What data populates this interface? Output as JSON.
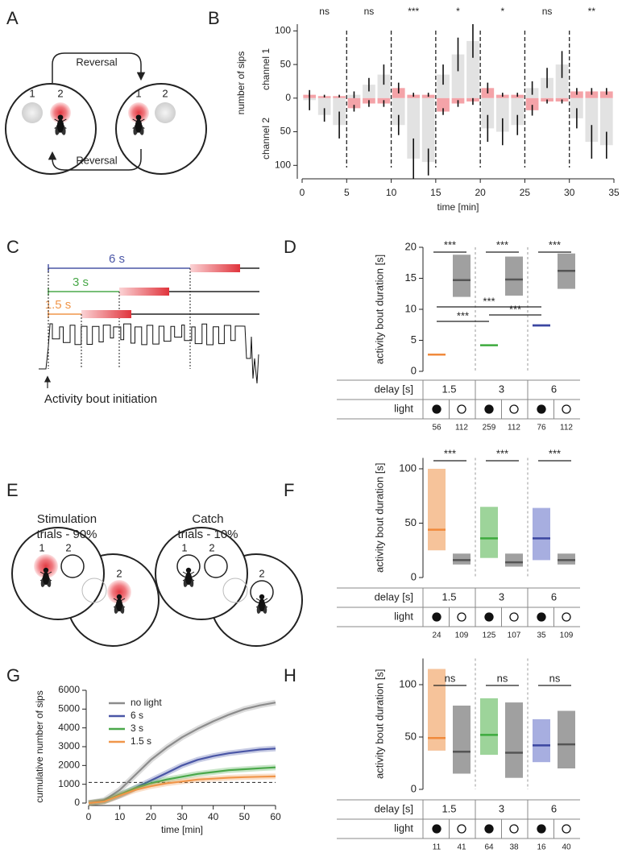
{
  "panel_labels": [
    "A",
    "B",
    "C",
    "D",
    "E",
    "F",
    "G",
    "H"
  ],
  "diagram_a": {
    "arrow_labels": [
      "Reversal",
      "Reversal"
    ],
    "food_labels": [
      "1",
      "2",
      "1",
      "2"
    ]
  },
  "diagram_c": {
    "delay_labels": [
      {
        "text": "6 s",
        "color": "#4a56a6"
      },
      {
        "text": "3 s",
        "color": "#4aa84a"
      },
      {
        "text": "1.5 s",
        "color": "#f0964a"
      }
    ],
    "annotation": "Activity bout initiation"
  },
  "diagram_e": {
    "trial_labels": [
      [
        "Stimulation",
        "trials - 90%"
      ],
      [
        "Catch",
        "trials - 10%"
      ]
    ],
    "food_labels": [
      "1",
      "2",
      "2",
      "1",
      "2",
      "2"
    ]
  },
  "chart_data": [
    {
      "type": "mirrored_bar",
      "ylabel": "number of sips",
      "xlabel": "time [min]",
      "x": [
        0.83,
        2.5,
        4.17,
        5.83,
        7.5,
        9.17,
        10.83,
        12.5,
        14.17,
        15.83,
        17.5,
        19.17,
        20.83,
        22.5,
        24.17,
        25.83,
        27.5,
        29.17,
        30.83,
        32.5,
        34.17
      ],
      "series": [
        {
          "name": "channel 1",
          "values": [
            5,
            3,
            3,
            5,
            20,
            35,
            15,
            5,
            5,
            35,
            65,
            85,
            15,
            5,
            5,
            15,
            30,
            50,
            10,
            10,
            10
          ],
          "errors": [
            3,
            2,
            2,
            5,
            10,
            15,
            8,
            3,
            3,
            15,
            25,
            25,
            8,
            3,
            3,
            10,
            15,
            20,
            5,
            5,
            5
          ],
          "colors": [
            "#f4a3a8",
            "#f4a3a8",
            "#f4a3a8",
            "#e2e2e2",
            "#e2e2e2",
            "#e2e2e2",
            "#f4a3a8",
            "#f4a3a8",
            "#f4a3a8",
            "#e2e2e2",
            "#e2e2e2",
            "#e2e2e2",
            "#f4a3a8",
            "#f4a3a8",
            "#f4a3a8",
            "#e2e2e2",
            "#e2e2e2",
            "#e2e2e2",
            "#f4a3a8",
            "#f4a3a8",
            "#f4a3a8"
          ]
        },
        {
          "name": "channel 2",
          "values": [
            -3,
            -25,
            -40,
            -15,
            -8,
            -8,
            -40,
            -90,
            -95,
            -20,
            -8,
            -5,
            -45,
            -50,
            -40,
            -18,
            -5,
            -5,
            -30,
            -65,
            -70
          ],
          "errors": [
            15,
            10,
            20,
            5,
            5,
            5,
            15,
            30,
            20,
            5,
            5,
            5,
            20,
            20,
            15,
            8,
            3,
            3,
            15,
            25,
            20
          ],
          "colors": [
            "#e2e2e2",
            "#e2e2e2",
            "#e2e2e2",
            "#f4a3a8",
            "#f4a3a8",
            "#f4a3a8",
            "#e2e2e2",
            "#e2e2e2",
            "#e2e2e2",
            "#f4a3a8",
            "#f4a3a8",
            "#f4a3a8",
            "#e2e2e2",
            "#e2e2e2",
            "#e2e2e2",
            "#f4a3a8",
            "#f4a3a8",
            "#f4a3a8",
            "#e2e2e2",
            "#e2e2e2",
            "#e2e2e2"
          ]
        }
      ],
      "xlim": [
        0,
        35
      ],
      "xticks": [
        0,
        5,
        10,
        15,
        20,
        25,
        30,
        35
      ],
      "ylim": [
        -120,
        110
      ],
      "yticks": [
        {
          "value": -100,
          "label": "100"
        },
        {
          "value": -50,
          "label": "50"
        },
        0,
        50,
        100
      ],
      "block_annotations": [
        "ns",
        "ns",
        "***",
        "*",
        "*",
        "ns",
        "**"
      ]
    },
    {
      "type": "box",
      "ylabel": "activity bout duration [s]",
      "ylim": [
        0,
        20
      ],
      "yticks": [
        0,
        5,
        10,
        15,
        20
      ],
      "table_labels": [
        "delay [s]",
        "light"
      ],
      "groups": [
        "1.5",
        "3",
        "6"
      ],
      "light": [
        true,
        false,
        true,
        false,
        true,
        false
      ],
      "medians": [
        2.7,
        14.7,
        4.2,
        14.8,
        7.4,
        16.2
      ],
      "q1": [
        2.6,
        12,
        4.1,
        12.2,
        7.2,
        13.3
      ],
      "q3": [
        2.8,
        18.8,
        4.3,
        18.5,
        7.6,
        19
      ],
      "box_colors": [
        "#f6b98a",
        "#a0a0a0",
        "#9dd49a",
        "#a0a0a0",
        "#a7aee0",
        "#a0a0a0"
      ],
      "median_colors": [
        "#f08a3c",
        "#555555",
        "#3daa3d",
        "#555555",
        "#3b46a0",
        "#555555"
      ],
      "n": [
        56,
        112,
        259,
        112,
        76,
        112
      ],
      "pair_labels": [
        "***",
        "***",
        "***"
      ],
      "cross_labels": [
        "***",
        "***",
        "***"
      ]
    },
    {
      "type": "box",
      "ylabel": "activity bout duration [s]",
      "ylim": [
        0,
        110
      ],
      "yticks": [
        0,
        50,
        100
      ],
      "table_labels": [
        "delay [s]",
        "light"
      ],
      "groups": [
        "1.5",
        "3",
        "6"
      ],
      "light": [
        true,
        false,
        true,
        false,
        true,
        false
      ],
      "medians": [
        44,
        16,
        36,
        14,
        36,
        16
      ],
      "q1": [
        25,
        12,
        18,
        10,
        16,
        12
      ],
      "q3": [
        100,
        22,
        65,
        22,
        64,
        22
      ],
      "box_colors": [
        "#f6c39a",
        "#a0a0a0",
        "#9dd49a",
        "#a0a0a0",
        "#a7aee0",
        "#a0a0a0"
      ],
      "median_colors": [
        "#f08a3c",
        "#555555",
        "#3daa3d",
        "#555555",
        "#3b46a0",
        "#555555"
      ],
      "n": [
        24,
        109,
        125,
        107,
        35,
        109
      ],
      "pair_labels": [
        "***",
        "***",
        "***"
      ]
    },
    {
      "type": "line",
      "ylabel": "cumulative number of sips",
      "xlabel": "time [min]",
      "x": [
        0,
        5,
        10,
        15,
        20,
        25,
        30,
        35,
        40,
        45,
        50,
        55,
        60
      ],
      "series": [
        {
          "name": "no light",
          "color": "#8c8c8c",
          "values": [
            0,
            150,
            700,
            1500,
            2300,
            2950,
            3500,
            3950,
            4350,
            4700,
            5000,
            5200,
            5350
          ]
        },
        {
          "name": "6 s",
          "color": "#4a56a6",
          "values": [
            0,
            100,
            400,
            800,
            1200,
            1600,
            2000,
            2300,
            2500,
            2650,
            2750,
            2850,
            2900
          ]
        },
        {
          "name": "3 s",
          "color": "#4aa84a",
          "values": [
            0,
            100,
            450,
            800,
            1050,
            1250,
            1400,
            1550,
            1650,
            1750,
            1800,
            1850,
            1900
          ]
        },
        {
          "name": "1.5 s",
          "color": "#f0964a",
          "values": [
            0,
            80,
            400,
            700,
            900,
            1050,
            1150,
            1250,
            1300,
            1350,
            1380,
            1400,
            1420
          ]
        }
      ],
      "xlim": [
        0,
        60
      ],
      "xticks": [
        0,
        10,
        20,
        30,
        40,
        50,
        60
      ],
      "ylim": [
        0,
        6000
      ],
      "yticks": [
        0,
        1000,
        2000,
        3000,
        4000,
        5000,
        6000
      ],
      "reference_line": 1100,
      "legend": "upper left"
    },
    {
      "type": "box",
      "ylabel": "activity bout duration [s]",
      "ylim": [
        0,
        125
      ],
      "yticks": [
        0,
        50,
        100
      ],
      "table_labels": [
        "delay [s]",
        "light"
      ],
      "groups": [
        "1.5",
        "3",
        "6"
      ],
      "light": [
        true,
        false,
        true,
        false,
        true,
        false
      ],
      "medians": [
        49,
        36,
        52,
        35,
        42,
        43
      ],
      "q1": [
        37,
        15,
        33,
        11,
        26,
        20
      ],
      "q3": [
        115,
        80,
        87,
        83,
        67,
        75
      ],
      "box_colors": [
        "#f6c39a",
        "#a0a0a0",
        "#9dd49a",
        "#a0a0a0",
        "#a7aee0",
        "#a0a0a0"
      ],
      "median_colors": [
        "#f08a3c",
        "#555555",
        "#3daa3d",
        "#555555",
        "#3b46a0",
        "#555555"
      ],
      "n": [
        11,
        41,
        64,
        38,
        16,
        40
      ],
      "pair_labels": [
        "ns",
        "ns",
        "ns"
      ]
    }
  ]
}
